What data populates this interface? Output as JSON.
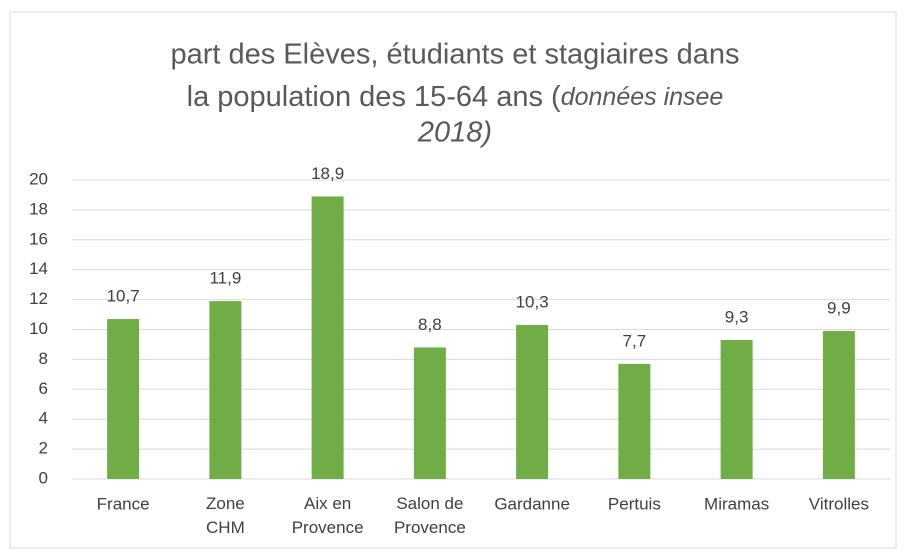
{
  "chart_data": {
    "type": "bar",
    "title": [
      "part des Elèves, étudiants et stagiaires dans",
      "la population des 15-64 ans (",
      "données insee",
      "2018)"
    ],
    "categories": [
      "France",
      "Zone CHM",
      "Aix en Provence",
      "Salon de Provence",
      "Gardanne",
      "Pertuis",
      "Miramas",
      "Vitrolles"
    ],
    "values": [
      10.7,
      11.9,
      18.9,
      8.8,
      10.3,
      7.7,
      9.3,
      9.9
    ],
    "value_labels": [
      "10,7",
      "11,9",
      "18,9",
      "8,8",
      "10,3",
      "7,7",
      "9,3",
      "9,9"
    ],
    "color": "#70ad47",
    "ylim": [
      0,
      20
    ],
    "yticks": [
      0,
      2,
      4,
      6,
      8,
      10,
      12,
      14,
      16,
      18,
      20
    ],
    "grid": true
  }
}
